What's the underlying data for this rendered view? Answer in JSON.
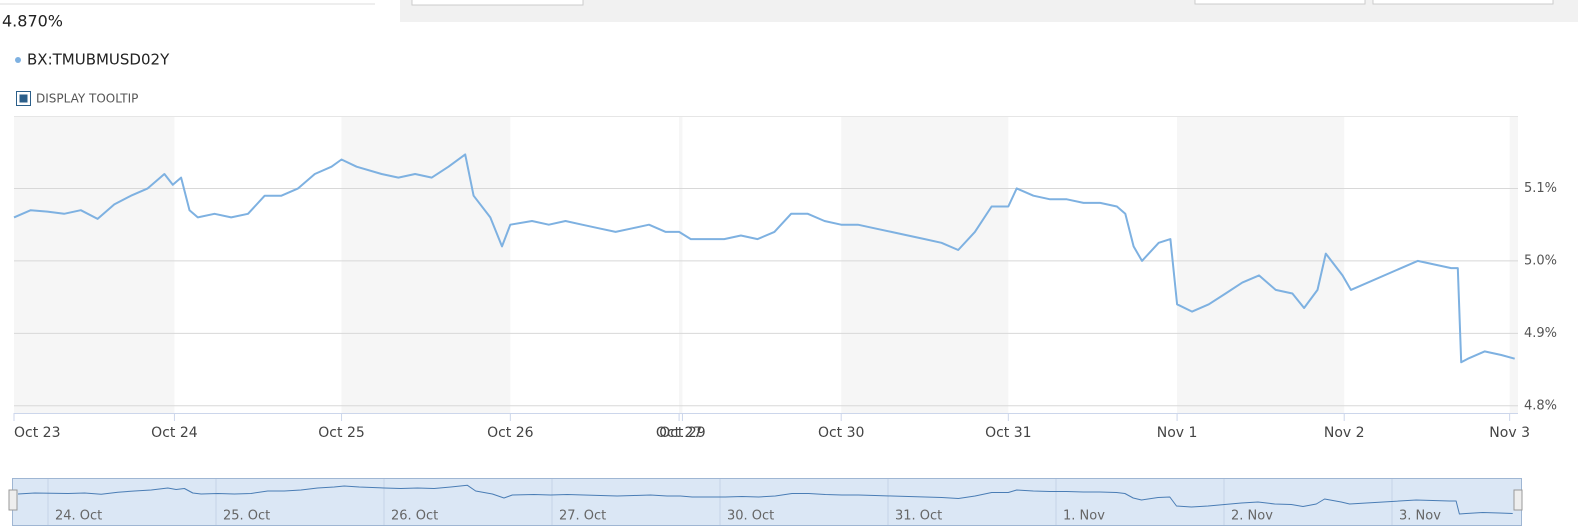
{
  "header": {
    "last_value": "4.870%",
    "series_label": "BX:TMUBMUSD02Y",
    "tooltip_toggle": "DISPLAY TOOLTIP"
  },
  "chart_data": {
    "type": "line",
    "x": [
      0,
      0.1,
      0.2,
      0.3,
      0.4,
      0.5,
      0.6,
      0.7,
      0.8,
      0.9,
      0.95,
      1.0,
      1.05,
      1.1,
      1.2,
      1.3,
      1.4,
      1.5,
      1.6,
      1.7,
      1.8,
      1.9,
      1.96,
      2.05,
      2.2,
      2.3,
      2.4,
      2.5,
      2.6,
      2.7,
      2.75,
      2.85,
      2.92,
      2.97,
      3.1,
      3.2,
      3.3,
      3.4,
      3.5,
      3.6,
      3.7,
      3.8,
      3.9,
      3.98,
      4.05,
      4.15,
      4.25,
      4.35,
      4.45,
      4.55,
      4.65,
      4.75,
      4.85,
      4.95,
      5.05,
      5.15,
      5.25,
      5.35,
      5.45,
      5.55,
      5.65,
      5.75,
      5.85,
      5.95,
      6.0,
      6.1,
      6.2,
      6.3,
      6.4,
      6.5,
      6.6,
      6.65,
      6.7,
      6.75,
      6.85,
      6.92,
      6.96,
      7.05,
      7.15,
      7.25,
      7.35,
      7.45,
      7.55,
      7.65,
      7.72,
      7.8,
      7.85,
      7.95,
      8.0,
      8.4,
      8.5,
      8.6,
      8.64,
      8.66,
      8.7,
      8.8,
      8.9,
      8.98
    ],
    "series": [
      {
        "name": "BX:TMUBMUSD02Y",
        "color": "#7eb1e1",
        "values": [
          5.06,
          5.07,
          5.068,
          5.065,
          5.07,
          5.058,
          5.078,
          5.09,
          5.1,
          5.12,
          5.105,
          5.115,
          5.07,
          5.06,
          5.065,
          5.06,
          5.065,
          5.09,
          5.09,
          5.1,
          5.12,
          5.13,
          5.14,
          5.13,
          5.12,
          5.115,
          5.12,
          5.115,
          5.13,
          5.147,
          5.09,
          5.06,
          5.02,
          5.05,
          5.055,
          5.05,
          5.055,
          5.05,
          5.045,
          5.04,
          5.045,
          5.05,
          5.04,
          5.04,
          5.03,
          5.03,
          5.03,
          5.035,
          5.03,
          5.04,
          5.065,
          5.065,
          5.055,
          5.05,
          5.05,
          5.045,
          5.04,
          5.035,
          5.03,
          5.025,
          5.015,
          5.04,
          5.075,
          5.075,
          5.1,
          5.09,
          5.085,
          5.085,
          5.08,
          5.08,
          5.075,
          5.065,
          5.02,
          5.0,
          5.025,
          5.03,
          4.94,
          4.93,
          4.94,
          4.955,
          4.97,
          4.98,
          4.96,
          4.955,
          4.935,
          4.96,
          5.01,
          4.98,
          4.96,
          5.0,
          4.995,
          4.99,
          4.99,
          4.86,
          4.865,
          4.875,
          4.87,
          4.865
        ]
      }
    ],
    "xlim": [
      0,
      9.0
    ],
    "xticks": [
      {
        "value": 0,
        "label": "Oct 23"
      },
      {
        "value": 0.96,
        "label": "Oct 24"
      },
      {
        "value": 1.96,
        "label": "Oct 25"
      },
      {
        "value": 2.97,
        "label": "Oct 26"
      },
      {
        "value": 3.98,
        "label": "Oct 27"
      },
      {
        "value": 4.0,
        "label": "Oct 29"
      },
      {
        "value": 4.95,
        "label": "Oct 30"
      },
      {
        "value": 5.95,
        "label": "Oct 31"
      },
      {
        "value": 6.96,
        "label": "Nov 1"
      },
      {
        "value": 7.96,
        "label": "Nov 2"
      },
      {
        "value": 8.95,
        "label": "Nov 3"
      }
    ],
    "ylim": [
      4.79,
      5.2
    ],
    "yticks": [
      {
        "value": 4.8,
        "label": "4.8%"
      },
      {
        "value": 4.9,
        "label": "4.9%"
      },
      {
        "value": 5.0,
        "label": "5.0%"
      },
      {
        "value": 5.1,
        "label": "5.1%"
      }
    ],
    "grid": true
  },
  "navigator": {
    "labels": [
      "24. Oct",
      "25. Oct",
      "26. Oct",
      "27. Oct",
      "30. Oct",
      "31. Oct",
      "1. Nov",
      "2. Nov",
      "3. Nov"
    ]
  }
}
